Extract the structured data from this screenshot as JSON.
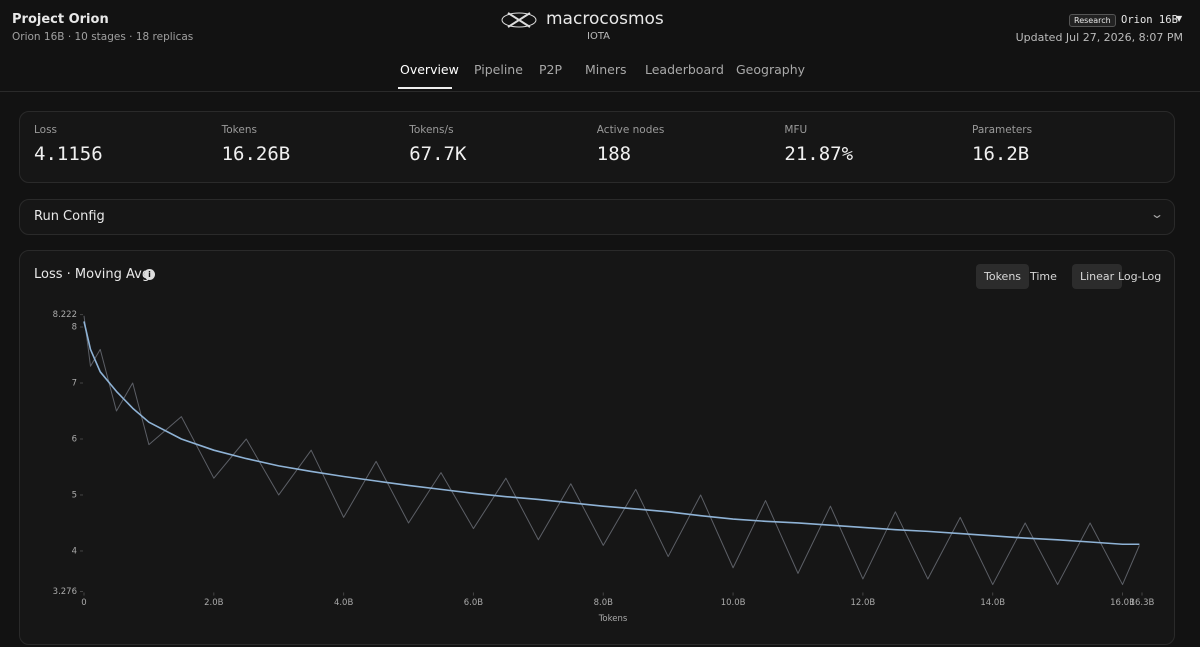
{
  "header": {
    "title": "Project Orion",
    "subtitle": "Orion 16B · 10 stages · 18 replicas",
    "brand": "macrocosmos",
    "product": "IOTA",
    "badge": "Research",
    "model": "Orion 16B",
    "updated": "Updated Jul 27, 2026, 8:07 PM"
  },
  "nav": [
    "Overview",
    "Pipeline",
    "P2P",
    "Miners",
    "Leaderboard",
    "Geography"
  ],
  "stats": [
    {
      "label": "Loss",
      "value": "4.1156"
    },
    {
      "label": "Tokens",
      "value": "16.26B"
    },
    {
      "label": "Tokens/s",
      "value": "67.7K"
    },
    {
      "label": "Active nodes",
      "value": "188"
    },
    {
      "label": "MFU",
      "value": "21.87%"
    },
    {
      "label": "Parameters",
      "value": "16.2B"
    }
  ],
  "run_config": "Run Config",
  "toggles": {
    "axis": [
      "Tokens",
      "Time"
    ],
    "scale": [
      "Linear",
      "Log-Log"
    ]
  },
  "chart_data": {
    "type": "line",
    "title": "Loss · Moving Avg",
    "x_label": "Tokens",
    "x": [
      0,
      100000000,
      250000000,
      500000000,
      750000000,
      1000000000,
      1500000000,
      2000000000,
      2500000000,
      3000000000,
      3500000000,
      4000000000,
      4500000000,
      5000000000,
      5500000000,
      6000000000,
      6500000000,
      7000000000,
      7500000000,
      8000000000,
      8500000000,
      9000000000,
      9500000000,
      10000000000,
      10500000000,
      11000000000,
      11500000000,
      12000000000,
      12500000000,
      13000000000,
      13500000000,
      14000000000,
      14500000000,
      15000000000,
      15500000000,
      16000000000,
      16260000000
    ],
    "series": [
      {
        "color": "#5c5f66",
        "values": [
          8.2,
          7.3,
          7.6,
          6.5,
          7.0,
          5.9,
          6.4,
          5.3,
          6.0,
          5.0,
          5.8,
          4.6,
          5.6,
          4.5,
          5.4,
          4.4,
          5.3,
          4.2,
          5.2,
          4.1,
          5.1,
          3.9,
          5.0,
          3.7,
          4.9,
          3.6,
          4.8,
          3.5,
          4.7,
          3.5,
          4.6,
          3.4,
          4.5,
          3.4,
          4.5,
          3.4,
          4.1
        ]
      },
      {
        "color": "#8fb3d6",
        "values": [
          8.1,
          7.6,
          7.2,
          6.85,
          6.55,
          6.3,
          6.0,
          5.8,
          5.65,
          5.52,
          5.42,
          5.33,
          5.25,
          5.17,
          5.1,
          5.03,
          4.97,
          4.92,
          4.86,
          4.8,
          4.75,
          4.7,
          4.63,
          4.57,
          4.53,
          4.5,
          4.46,
          4.42,
          4.38,
          4.35,
          4.31,
          4.27,
          4.23,
          4.2,
          4.16,
          4.12,
          4.12
        ]
      }
    ],
    "xlim": [
      0,
      16300000000
    ],
    "xticks": [
      0,
      {
        "value": 2000000000,
        "label": "2.0B"
      },
      {
        "value": 4000000000,
        "label": "4.0B"
      },
      {
        "value": 6000000000,
        "label": "6.0B"
      },
      {
        "value": 8000000000,
        "label": "8.0B"
      },
      {
        "value": 10000000000,
        "label": "10.0B"
      },
      {
        "value": 12000000000,
        "label": "12.0B"
      },
      {
        "value": 14000000000,
        "label": "14.0B"
      },
      {
        "value": 16000000000,
        "label": "16.0B"
      },
      {
        "value": 16300000000,
        "label": "16.3B"
      }
    ],
    "ylim": [
      3.276,
      8.222
    ],
    "yticks": [
      3.276,
      4,
      5,
      6,
      7,
      8,
      8.222
    ],
    "grid": false
  }
}
